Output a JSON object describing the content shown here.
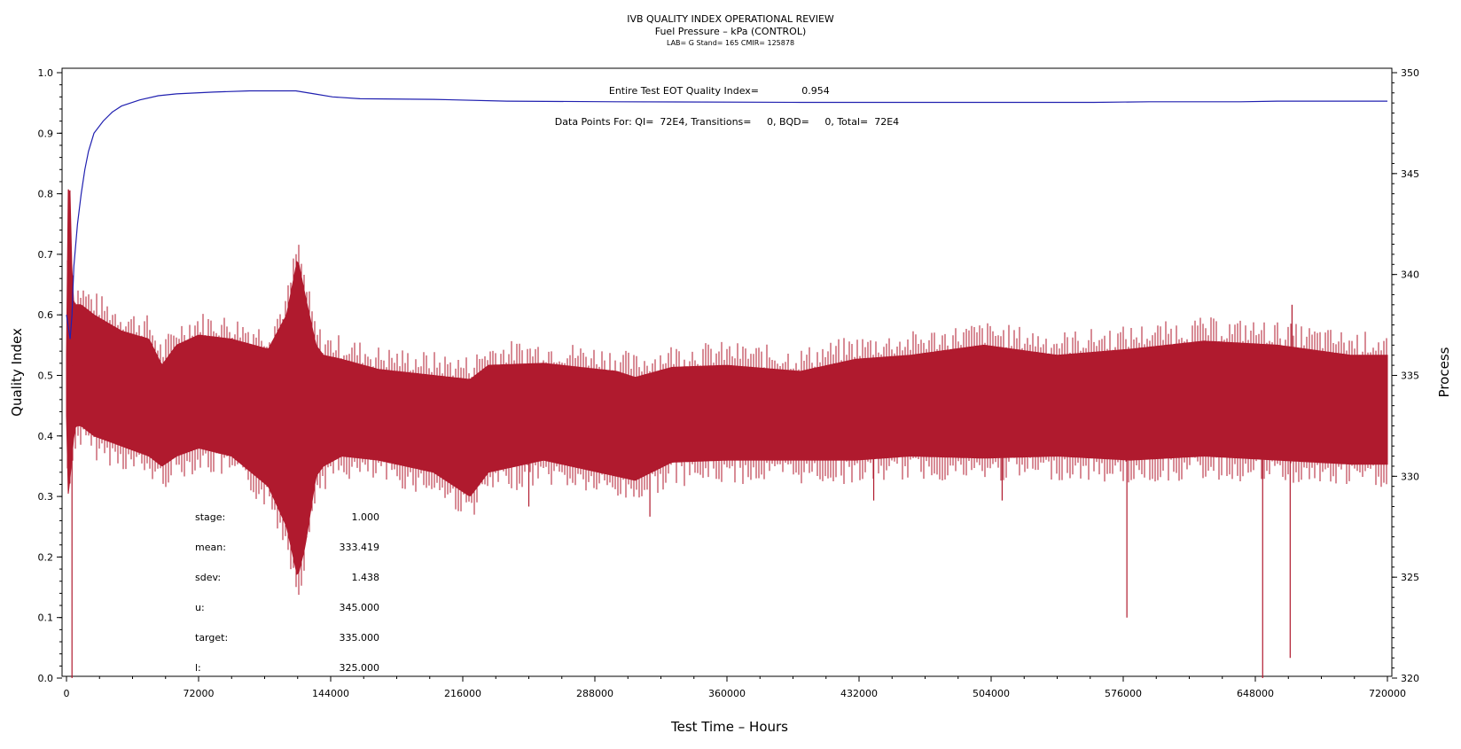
{
  "chart_data": {
    "type": "line",
    "title": "IVB QUALITY INDEX OPERATIONAL REVIEW",
    "subtitle": "Fuel Pressure – kPa (CONTROL)",
    "info": "LAB= G Stand= 165 CMIR= 125878",
    "xlabel": "Test Time – Hours",
    "ylabel_left": "Quality Index",
    "ylabel_right": "Process",
    "xlim": [
      0,
      720000
    ],
    "ylim_left": [
      0.0,
      1.0
    ],
    "ylim_right": [
      320,
      350
    ],
    "x_ticks": [
      "0",
      "72000",
      "144000",
      "216000",
      "288000",
      "360000",
      "432000",
      "504000",
      "576000",
      "648000",
      "720000"
    ],
    "y_left_ticks": [
      "0.0",
      "0.1",
      "0.2",
      "0.3",
      "0.4",
      "0.5",
      "0.6",
      "0.7",
      "0.8",
      "0.9",
      "1.0"
    ],
    "y_right_ticks": [
      "320",
      "325",
      "330",
      "335",
      "340",
      "345",
      "350"
    ],
    "annotations": {
      "eot_label": "Entire Test EOT Quality Index=",
      "eot_value": "0.954",
      "datapoints": "Data Points For: QI=  72E4, Transitions=     0, BQD=     0, Total=  72E4"
    },
    "stats": [
      {
        "label": "stage:",
        "value": "1.000"
      },
      {
        "label": "mean:",
        "value": "333.419"
      },
      {
        "label": "sdev:",
        "value": "1.438"
      },
      {
        "label": "u:",
        "value": "345.000"
      },
      {
        "label": "target:",
        "value": "335.000"
      },
      {
        "label": "l:",
        "value": "325.000"
      }
    ],
    "series": [
      {
        "name": "Quality Index",
        "axis": "left",
        "color": "#2020b0",
        "x": [
          0,
          1000,
          2000,
          3000,
          4000,
          6000,
          8000,
          10000,
          12000,
          15000,
          20000,
          25000,
          30000,
          40000,
          50000,
          60000,
          80000,
          100000,
          115000,
          125000,
          135000,
          145000,
          160000,
          200000,
          240000,
          300000,
          400000,
          480000,
          500000,
          560000,
          590000,
          640000,
          660000,
          700000,
          720000
        ],
        "values": [
          0.6,
          0.58,
          0.56,
          0.6,
          0.68,
          0.75,
          0.8,
          0.84,
          0.87,
          0.9,
          0.92,
          0.935,
          0.945,
          0.955,
          0.962,
          0.965,
          0.968,
          0.97,
          0.97,
          0.97,
          0.965,
          0.96,
          0.957,
          0.956,
          0.953,
          0.952,
          0.951,
          0.951,
          0.951,
          0.951,
          0.952,
          0.952,
          0.953,
          0.953,
          0.953
        ]
      },
      {
        "name": "Fuel Pressure",
        "axis": "right",
        "color": "#b01a2e",
        "envelope_x": [
          0,
          1000,
          2000,
          3000,
          4000,
          5000,
          8000,
          15000,
          30000,
          45000,
          52000,
          60000,
          72000,
          90000,
          110000,
          120000,
          126000,
          130000,
          136000,
          140000,
          150000,
          170000,
          200000,
          220000,
          230000,
          260000,
          300000,
          310000,
          330000,
          360000,
          400000,
          430000,
          460000,
          500000,
          540000,
          580000,
          620000,
          660000,
          700000,
          720000
        ],
        "upper": [
          336,
          344.5,
          344,
          340,
          338.5,
          338.5,
          338.5,
          338,
          337.2,
          336.8,
          335.5,
          336.5,
          337.0,
          336.8,
          336.3,
          338.0,
          340.8,
          339.0,
          336.5,
          336.0,
          335.8,
          335.3,
          335.0,
          334.8,
          335.5,
          335.6,
          335.2,
          334.9,
          335.4,
          335.5,
          335.2,
          335.8,
          336.0,
          336.5,
          336.0,
          336.3,
          336.7,
          336.5,
          336.0,
          336.0
        ],
        "lower": [
          333,
          329,
          330,
          331,
          332,
          332.5,
          332.5,
          332.0,
          331.5,
          331.0,
          330.5,
          331.0,
          331.4,
          331.0,
          329.5,
          327.5,
          325.0,
          326.5,
          330.0,
          330.5,
          331.0,
          330.8,
          330.2,
          329.0,
          330.2,
          330.8,
          330.0,
          329.8,
          330.7,
          330.8,
          330.8,
          330.8,
          331.0,
          330.9,
          331.0,
          330.8,
          331.0,
          330.8,
          330.6,
          330.6
        ],
        "spikes": [
          {
            "x": 3000,
            "y": 320.0
          },
          {
            "x": 578000,
            "y": 323.0
          },
          {
            "x": 652000,
            "y": 320.0
          },
          {
            "x": 667000,
            "y": 321.0
          },
          {
            "x": 318000,
            "y": 328.0
          },
          {
            "x": 252000,
            "y": 328.5
          },
          {
            "x": 440000,
            "y": 328.8
          },
          {
            "x": 510000,
            "y": 328.8
          },
          {
            "x": 668000,
            "y": 338.5
          }
        ]
      }
    ],
    "grid": false
  }
}
